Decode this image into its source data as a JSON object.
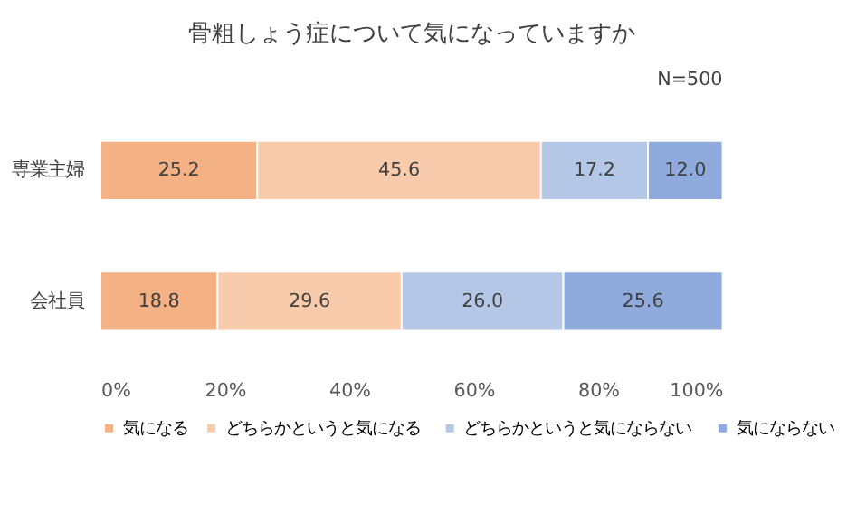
{
  "chart_data": {
    "type": "bar",
    "orientation": "horizontal",
    "stacked": true,
    "title": "骨粗しょう症について気になっていますか",
    "annotations": [
      "N=500"
    ],
    "categories": [
      "専業主婦",
      "会社員"
    ],
    "series": [
      {
        "name": "気になる",
        "color": "#f4b183",
        "values": [
          25.2,
          18.8
        ],
        "value_labels": [
          "25.2",
          "18.8"
        ]
      },
      {
        "name": "どちらかというと気になる",
        "color": "#f8cbad",
        "values": [
          45.6,
          29.6
        ],
        "value_labels": [
          "45.6",
          "29.6"
        ]
      },
      {
        "name": "どちらかというと気にならない",
        "color": "#b4c7e7",
        "values": [
          17.2,
          26.0
        ],
        "value_labels": [
          "17.2",
          "26.0"
        ]
      },
      {
        "name": "気にならない",
        "color": "#8faadc",
        "values": [
          12.0,
          25.6
        ],
        "value_labels": [
          "12.0",
          "25.6"
        ]
      }
    ],
    "xlim": [
      0,
      100
    ],
    "xticks": [
      {
        "value": 0,
        "label": "0%"
      },
      {
        "value": 20,
        "label": "20%"
      },
      {
        "value": 40,
        "label": "40%"
      },
      {
        "value": 60,
        "label": "60%"
      },
      {
        "value": 80,
        "label": "80%"
      },
      {
        "value": 100,
        "label": "100%"
      }
    ],
    "grid": false,
    "legend": "bottom"
  }
}
